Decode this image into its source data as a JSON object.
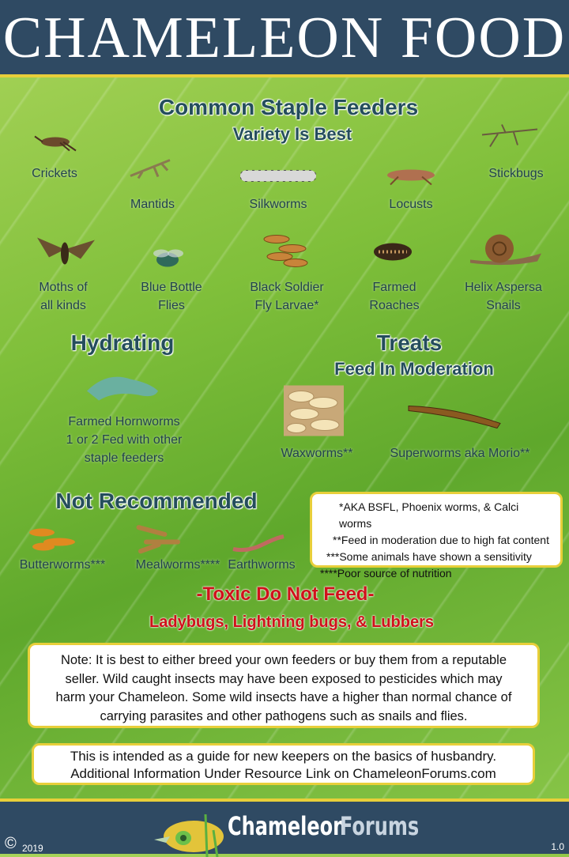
{
  "header": {
    "title": "CHAMELEON FOOD"
  },
  "staple": {
    "title": "Common Staple Feeders",
    "subtitle": "Variety Is Best",
    "items": [
      {
        "label": "Crickets",
        "icon": "cricket"
      },
      {
        "label": "Mantids",
        "icon": "mantis"
      },
      {
        "label": "Silkworms",
        "icon": "silkworm"
      },
      {
        "label": "Locusts",
        "icon": "locust"
      },
      {
        "label": "Stickbugs",
        "icon": "stickbug"
      },
      {
        "label": "Moths of\nall kinds",
        "icon": "moth"
      },
      {
        "label": "Blue Bottle\nFlies",
        "icon": "fly"
      },
      {
        "label": "Black Soldier\nFly Larvae*",
        "icon": "larvae"
      },
      {
        "label": "Farmed\nRoaches",
        "icon": "roach"
      },
      {
        "label": "Helix Aspersa\nSnails",
        "icon": "snail"
      }
    ]
  },
  "hydrating": {
    "title": "Hydrating",
    "item": {
      "label": "Farmed Hornworms\n1 or 2 Fed with other\nstaple feeders",
      "icon": "hornworm"
    }
  },
  "treats": {
    "title": "Treats",
    "subtitle": "Feed In Moderation",
    "items": [
      {
        "label": "Waxworms**",
        "icon": "waxworm"
      },
      {
        "label": "Superworms aka Morio**",
        "icon": "superworm"
      }
    ]
  },
  "not_recommended": {
    "title": "Not Recommended",
    "items": [
      {
        "label": "Butterworms***",
        "icon": "butterworm"
      },
      {
        "label": "Mealworms****",
        "icon": "mealworm"
      },
      {
        "label": "Earthworms",
        "icon": "earthworm"
      }
    ]
  },
  "footnotes": [
    "*AKA BSFL, Phoenix worms, & Calci worms",
    "**Feed in moderation due to high fat content",
    "***Some animals have shown a sensitivity",
    "****Poor source of nutrition"
  ],
  "toxic": {
    "title": "-Toxic Do Not Feed-",
    "items": "Ladybugs, Lightning bugs, & Lubbers"
  },
  "note": "Note: It is best to either breed your own feeders or buy them from a reputable seller. Wild caught insects may have been exposed to pesticides which may harm your Chameleon. Some wild insects have a higher than normal chance of carrying parasites and other pathogens such as snails and flies.",
  "guide": "This is intended as a guide for new keepers on the basics of husbandry. Additional Information Under Resource Link on ChameleonForums.com",
  "footer": {
    "copyright": "©",
    "year": "2019",
    "logo_text_1": "Chameleon",
    "logo_text_2": "Forums",
    "version": "1.0"
  },
  "colors": {
    "header": "#2f4a63",
    "accent": "#e8cf3a",
    "heading": "#244d5c",
    "toxic": "#d0111b"
  }
}
